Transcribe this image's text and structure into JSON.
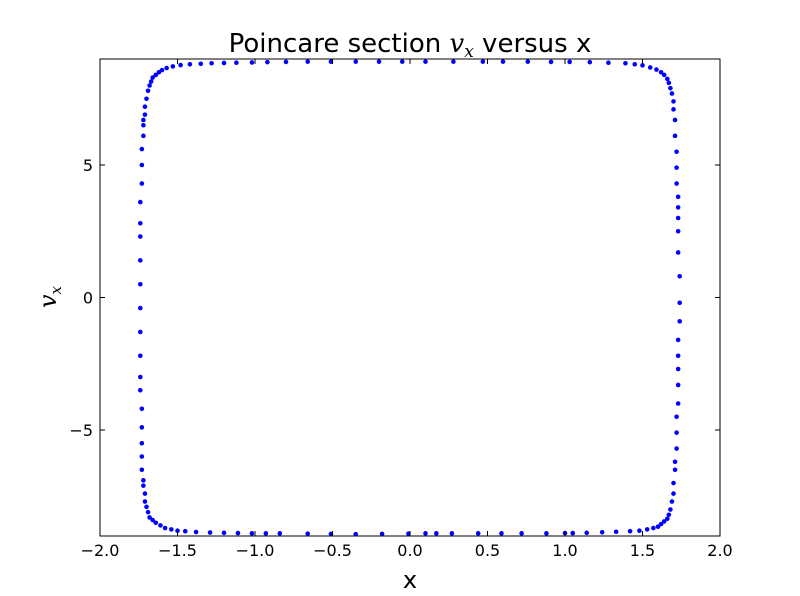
{
  "chart_data": {
    "type": "scatter",
    "title": {
      "prefix": "Poincare section ",
      "math_var": "v",
      "math_sub": "x",
      "suffix": " versus x"
    },
    "xlabel": "x",
    "ylabel": {
      "var": "v",
      "sub": "x"
    },
    "xlim": [
      -2.0,
      2.0
    ],
    "ylim": [
      -9.0,
      9.0
    ],
    "xticks": [
      {
        "value": -2.0,
        "label": "−2.0"
      },
      {
        "value": -1.5,
        "label": "−1.5"
      },
      {
        "value": -1.0,
        "label": "−1.0"
      },
      {
        "value": -0.5,
        "label": "−0.5"
      },
      {
        "value": 0.0,
        "label": "0.0"
      },
      {
        "value": 0.5,
        "label": "0.5"
      },
      {
        "value": 1.0,
        "label": "1.0"
      },
      {
        "value": 1.5,
        "label": "1.5"
      },
      {
        "value": 2.0,
        "label": "2.0"
      }
    ],
    "yticks": [
      {
        "value": 5,
        "label": "5"
      },
      {
        "value": 0,
        "label": "0"
      },
      {
        "value": -5,
        "label": "−5"
      }
    ],
    "grid": false,
    "legend": "none",
    "marker_color": "#0000ff",
    "series": [
      {
        "points": [
          [
            -1.74,
            1.4
          ],
          [
            -1.74,
            0.5
          ],
          [
            -1.74,
            -0.4
          ],
          [
            -1.74,
            -1.3
          ],
          [
            -1.74,
            -2.2
          ],
          [
            -1.74,
            -3.0
          ],
          [
            -1.74,
            -3.5
          ],
          [
            -1.73,
            -4.2
          ],
          [
            -1.73,
            -4.9
          ],
          [
            -1.73,
            -5.5
          ],
          [
            -1.73,
            -6.0
          ],
          [
            -1.73,
            -6.5
          ],
          [
            -1.72,
            -6.9
          ],
          [
            -1.72,
            -7.1
          ],
          [
            -1.71,
            -7.4
          ],
          [
            -1.71,
            -7.7
          ],
          [
            -1.7,
            -7.9
          ],
          [
            -1.69,
            -8.1
          ],
          [
            -1.68,
            -8.3
          ],
          [
            -1.66,
            -8.4
          ],
          [
            -1.64,
            -8.5
          ],
          [
            -1.61,
            -8.6
          ],
          [
            -1.58,
            -8.7
          ],
          [
            -1.54,
            -8.75
          ],
          [
            -1.5,
            -8.8
          ],
          [
            -1.45,
            -8.82
          ],
          [
            -1.38,
            -8.85
          ],
          [
            -1.29,
            -8.87
          ],
          [
            -1.2,
            -8.88
          ],
          [
            -1.11,
            -8.89
          ],
          [
            -1.02,
            -8.9
          ],
          [
            -0.93,
            -8.9
          ],
          [
            -0.84,
            -8.9
          ],
          [
            -0.66,
            -8.91
          ],
          [
            -0.51,
            -8.92
          ],
          [
            -0.35,
            -8.93
          ],
          [
            -0.18,
            -8.92
          ],
          [
            -0.01,
            -8.91
          ],
          [
            0.1,
            -8.9
          ],
          [
            0.17,
            -8.9
          ],
          [
            0.27,
            -8.9
          ],
          [
            0.44,
            -8.9
          ],
          [
            0.59,
            -8.9
          ],
          [
            0.72,
            -8.9
          ],
          [
            0.88,
            -8.9
          ],
          [
            1.0,
            -8.89
          ],
          [
            1.05,
            -8.89
          ],
          [
            1.14,
            -8.88
          ],
          [
            1.24,
            -8.86
          ],
          [
            1.33,
            -8.84
          ],
          [
            1.42,
            -8.82
          ],
          [
            1.48,
            -8.8
          ],
          [
            1.53,
            -8.75
          ],
          [
            1.57,
            -8.7
          ],
          [
            1.6,
            -8.65
          ],
          [
            1.62,
            -8.55
          ],
          [
            1.64,
            -8.45
          ],
          [
            1.66,
            -8.35
          ],
          [
            1.67,
            -8.2
          ],
          [
            1.68,
            -8.0
          ],
          [
            1.69,
            -7.7
          ],
          [
            1.7,
            -7.4
          ],
          [
            1.7,
            -7.0
          ],
          [
            1.71,
            -6.5
          ],
          [
            1.71,
            -6.2
          ],
          [
            1.72,
            -5.7
          ],
          [
            1.72,
            -5.1
          ],
          [
            1.72,
            -4.5
          ],
          [
            1.73,
            -4.0
          ],
          [
            1.73,
            -3.3
          ],
          [
            1.73,
            -2.7
          ],
          [
            1.73,
            -2.2
          ],
          [
            1.73,
            -1.6
          ],
          [
            1.74,
            -0.9
          ],
          [
            1.74,
            -0.2
          ],
          [
            1.74,
            0.8
          ],
          [
            1.73,
            1.7
          ],
          [
            1.73,
            2.5
          ],
          [
            1.73,
            3.0
          ],
          [
            1.73,
            3.4
          ],
          [
            1.73,
            3.8
          ],
          [
            1.72,
            4.3
          ],
          [
            1.72,
            4.9
          ],
          [
            1.72,
            5.5
          ],
          [
            1.71,
            6.1
          ],
          [
            1.71,
            6.7
          ],
          [
            1.7,
            7.1
          ],
          [
            1.7,
            7.4
          ],
          [
            1.69,
            7.7
          ],
          [
            1.68,
            7.9
          ],
          [
            1.67,
            8.1
          ],
          [
            1.66,
            8.25
          ],
          [
            1.64,
            8.4
          ],
          [
            1.62,
            8.5
          ],
          [
            1.59,
            8.6
          ],
          [
            1.55,
            8.68
          ],
          [
            1.5,
            8.76
          ],
          [
            1.45,
            8.8
          ],
          [
            1.39,
            8.84
          ],
          [
            1.28,
            8.86
          ],
          [
            1.16,
            8.88
          ],
          [
            1.03,
            8.89
          ],
          [
            0.91,
            8.89
          ],
          [
            0.76,
            8.9
          ],
          [
            0.6,
            8.9
          ],
          [
            0.47,
            8.9
          ],
          [
            0.28,
            8.9
          ],
          [
            0.1,
            8.9
          ],
          [
            -0.05,
            8.9
          ],
          [
            -0.2,
            8.9
          ],
          [
            -0.35,
            8.9
          ],
          [
            -0.51,
            8.9
          ],
          [
            -0.66,
            8.9
          ],
          [
            -0.8,
            8.89
          ],
          [
            -0.92,
            8.88
          ],
          [
            -1.02,
            8.87
          ],
          [
            -1.12,
            8.86
          ],
          [
            -1.2,
            8.85
          ],
          [
            -1.28,
            8.84
          ],
          [
            -1.35,
            8.82
          ],
          [
            -1.42,
            8.8
          ],
          [
            -1.48,
            8.77
          ],
          [
            -1.53,
            8.72
          ],
          [
            -1.57,
            8.66
          ],
          [
            -1.6,
            8.58
          ],
          [
            -1.62,
            8.5
          ],
          [
            -1.64,
            8.4
          ],
          [
            -1.66,
            8.3
          ],
          [
            -1.67,
            8.15
          ],
          [
            -1.68,
            8.0
          ],
          [
            -1.69,
            7.8
          ],
          [
            -1.7,
            7.5
          ],
          [
            -1.71,
            7.2
          ],
          [
            -1.71,
            6.9
          ],
          [
            -1.72,
            6.7
          ],
          [
            -1.72,
            6.5
          ],
          [
            -1.72,
            6.1
          ],
          [
            -1.73,
            5.6
          ],
          [
            -1.73,
            5.0
          ],
          [
            -1.73,
            4.3
          ],
          [
            -1.74,
            3.6
          ],
          [
            -1.74,
            2.8
          ],
          [
            -1.74,
            2.3
          ]
        ]
      }
    ]
  }
}
